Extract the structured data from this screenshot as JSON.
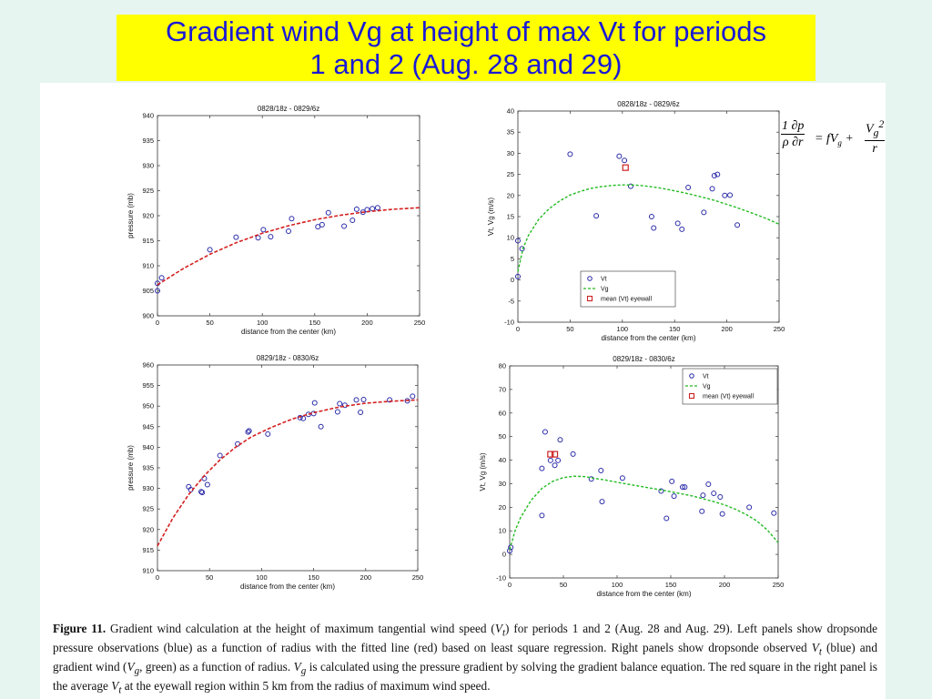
{
  "slide": {
    "title_line1": "Gradient wind Vg at height of max Vt for periods",
    "title_line2": "1 and 2 (Aug. 28 and 29)"
  },
  "equation": {
    "lhs_num": "1 ∂p",
    "lhs_den": "ρ ∂r",
    "middle": "= fV",
    "middle_sub": "g",
    "plus": "+",
    "rhs_num": "V",
    "rhs_num_sub": "g",
    "rhs_num_sup": "2",
    "rhs_den": "r"
  },
  "caption": {
    "label": "Figure 11.",
    "text": "Gradient wind calculation at the height of maximum tangential wind speed (V_t) for periods 1 and 2 (Aug. 28 and Aug. 29). Left panels show dropsonde pressure observations (blue) as a function of radius with the fitted line (red) based on least square regression. Right panels show dropsonde observed V_t (blue) and gradient wind (V_g, green) as a function of radius. V_g is calculated using the pressure gradient by solving the gradient balance equation. The red square in the right panel is the average V_t at the eyewall region within 5 km from the radius of maximum wind speed.",
    "part1": " Gradient wind calculation at the height of maximum tangential wind speed (",
    "part2": ") for periods 1 and 2 (Aug. 28 and Aug. 29). Left panels show dropsonde pressure observations (blue) as a function of radius with the fitted line (red) based on least square regression. Right panels show dropsonde observed ",
    "part3": " (blue) and gradient wind (",
    "part4": ", green) as a function of radius. ",
    "part5": " is calculated using the pressure gradient by solving the gradient balance equation. The red square in the right panel is the average ",
    "part6": " at the eyewall region within 5 km from the radius of maximum wind speed.",
    "vt": "V",
    "vt_sub": "t",
    "vg": "V",
    "vg_sub": "g"
  },
  "colors": {
    "title_bg": "#ffff00",
    "title_text": "#1a1ad6",
    "obs_blue": "#2a2aa8",
    "fit_red": "#d42020",
    "vg_green": "#22bb22",
    "mean_red": "#cc2222"
  },
  "chart_data": [
    {
      "type": "scatter",
      "title": "0828/18z - 0829/6z",
      "xlabel": "distance from the center (km)",
      "ylabel": "pressure (mb)",
      "xlim": [
        0,
        250
      ],
      "ylim": [
        900,
        940
      ],
      "xticks": [
        0,
        50,
        100,
        150,
        200,
        250
      ],
      "yticks": [
        900,
        905,
        910,
        915,
        920,
        925,
        930,
        935,
        940
      ],
      "grid": false,
      "series": [
        {
          "kind": "points",
          "x": [
            0,
            0,
            4,
            50,
            75,
            96,
            101,
            108,
            125,
            128,
            153,
            157,
            163,
            178,
            186,
            190,
            196,
            200,
            205,
            210
          ],
          "y": [
            905,
            906.5,
            907.6,
            913.2,
            915.7,
            915.6,
            917.2,
            915.8,
            916.9,
            919.4,
            917.8,
            918.2,
            920.6,
            917.9,
            919.1,
            921.3,
            920.7,
            921.2,
            921.4,
            921.6
          ]
        },
        {
          "kind": "fit-line",
          "x": [
            0,
            25,
            50,
            75,
            100,
            125,
            150,
            175,
            200,
            225,
            250
          ],
          "y": [
            906.2,
            909.5,
            912.3,
            914.6,
            916.5,
            918.0,
            919.2,
            920.1,
            920.8,
            921.3,
            921.6
          ]
        }
      ]
    },
    {
      "type": "scatter",
      "title": "0828/18z - 0829/6z",
      "xlabel": "distance from the center (km)",
      "ylabel": "Vt, Vg (m/s)",
      "xlim": [
        0,
        250
      ],
      "ylim": [
        -10,
        40
      ],
      "xticks": [
        0,
        50,
        100,
        150,
        200,
        250
      ],
      "yticks": [
        -10,
        -5,
        0,
        5,
        10,
        15,
        20,
        25,
        30,
        35,
        40
      ],
      "grid": false,
      "legend": {
        "position": "bottom-center",
        "entries": [
          "Vt",
          "Vg",
          "mean (Vt) eyewall"
        ]
      },
      "series": [
        {
          "name": "Vt",
          "kind": "points",
          "x": [
            0,
            0,
            4,
            50,
            75,
            97,
            102,
            108,
            128,
            130,
            153,
            157,
            163,
            178,
            186,
            188,
            191,
            198,
            203,
            210
          ],
          "y": [
            0.8,
            9.3,
            7.4,
            29.8,
            15.2,
            29.3,
            28.3,
            22.2,
            15.0,
            12.3,
            13.4,
            12.0,
            21.9,
            16.0,
            21.6,
            24.7,
            25.0,
            20.0,
            20.1,
            13.0
          ]
        },
        {
          "name": "Vg",
          "kind": "dashed-line",
          "x": [
            0,
            5,
            10,
            20,
            30,
            40,
            50,
            60,
            70,
            80,
            90,
            100,
            110,
            120,
            130,
            140,
            150,
            160,
            170,
            180,
            190,
            200,
            210,
            220,
            230,
            240,
            250
          ],
          "y": [
            2,
            7.5,
            10.5,
            14.4,
            16.9,
            18.7,
            20.1,
            21.0,
            21.7,
            22.1,
            22.4,
            22.5,
            22.5,
            22.3,
            22.0,
            21.6,
            21.1,
            20.6,
            20.0,
            19.4,
            18.7,
            17.9,
            17.1,
            16.2,
            15.3,
            14.3,
            13.2
          ]
        },
        {
          "name": "mean (Vt) eyewall",
          "kind": "square",
          "x": [
            103
          ],
          "y": [
            26.6
          ]
        }
      ]
    },
    {
      "type": "scatter",
      "title": "0829/18z - 0830/6z",
      "xlabel": "distance from the center (km)",
      "ylabel": "pressure (mb)",
      "xlim": [
        0,
        250
      ],
      "ylim": [
        910,
        960
      ],
      "xticks": [
        0,
        50,
        100,
        150,
        200,
        250
      ],
      "yticks": [
        910,
        915,
        920,
        925,
        930,
        935,
        940,
        945,
        950,
        955,
        960
      ],
      "grid": false,
      "series": [
        {
          "kind": "points",
          "x": [
            30,
            32,
            42,
            43,
            45,
            48,
            60,
            77,
            87,
            88,
            106,
            137,
            140,
            145,
            150,
            151,
            157,
            173,
            175,
            180,
            191,
            195,
            198,
            223,
            240,
            245
          ],
          "y": [
            930.4,
            929.7,
            929.2,
            929.0,
            932.4,
            930.9,
            938.0,
            940.8,
            943.7,
            944.0,
            943.2,
            947.2,
            947.0,
            948.0,
            948.2,
            950.8,
            945.0,
            948.6,
            950.6,
            950.2,
            951.5,
            948.5,
            951.6,
            951.5,
            951.3,
            952.4
          ]
        },
        {
          "kind": "fit-line",
          "x": [
            0,
            15,
            30,
            45,
            60,
            75,
            90,
            110,
            130,
            150,
            175,
            200,
            225,
            250
          ],
          "y": [
            916.0,
            922.9,
            928.5,
            933.1,
            936.9,
            940.0,
            942.5,
            944.9,
            946.9,
            948.4,
            949.8,
            950.7,
            951.2,
            951.5
          ]
        }
      ]
    },
    {
      "type": "scatter",
      "title": "0829/18z - 0830/6z",
      "xlabel": "distance from the center (km)",
      "ylabel": "Vt, Vg (m/s)",
      "xlim": [
        0,
        250
      ],
      "ylim": [
        -10,
        80
      ],
      "xticks": [
        0,
        50,
        100,
        150,
        200,
        250
      ],
      "yticks": [
        -10,
        0,
        10,
        20,
        30,
        40,
        50,
        60,
        70,
        80
      ],
      "grid": false,
      "legend": {
        "position": "top-right",
        "entries": [
          "Vt",
          "Vg",
          "mean (Vt) eyewall"
        ]
      },
      "series": [
        {
          "name": "Vt",
          "kind": "points",
          "x": [
            0,
            1,
            30,
            30,
            33,
            38,
            42,
            45,
            47,
            59,
            76,
            85,
            86,
            105,
            141,
            146,
            151,
            153,
            161,
            163,
            179,
            180,
            185,
            190,
            196,
            198,
            223,
            246
          ],
          "y": [
            1.5,
            3,
            16.5,
            36.5,
            52.0,
            39.9,
            37.8,
            39.9,
            48.6,
            42.6,
            32.0,
            35.6,
            22.4,
            32.4,
            26.9,
            15.3,
            31.0,
            24.7,
            28.6,
            28.6,
            18.3,
            25.1,
            29.8,
            25.9,
            24.4,
            17.2,
            20.0,
            17.5
          ]
        },
        {
          "name": "Vg",
          "kind": "dashed-line",
          "x": [
            0,
            5,
            10,
            20,
            30,
            40,
            50,
            60,
            70,
            80,
            90,
            100,
            110,
            120,
            130,
            140,
            150,
            160,
            170,
            180,
            190,
            200,
            210,
            220,
            230,
            240,
            250
          ],
          "y": [
            2,
            10,
            15.5,
            23,
            28,
            31,
            32.6,
            33.2,
            33.0,
            32.2,
            31.5,
            30.6,
            29.8,
            29.0,
            28.2,
            27.4,
            26.6,
            25.7,
            24.8,
            23.6,
            22.4,
            21.0,
            19.2,
            17.0,
            14.2,
            10.3,
            5.0
          ]
        },
        {
          "name": "mean (Vt) eyewall",
          "kind": "square",
          "x": [
            38,
            42
          ],
          "y": [
            42.5,
            42.5
          ]
        }
      ]
    }
  ]
}
